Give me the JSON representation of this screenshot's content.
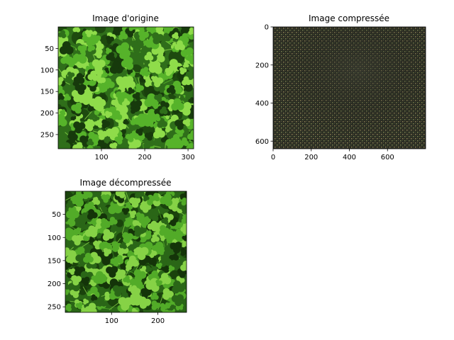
{
  "window": {
    "width": 640,
    "height": 480
  },
  "chart_data": [
    {
      "type": "image",
      "title": "Image d'origine",
      "xlim": [
        0,
        313
      ],
      "ylim": [
        283,
        0
      ],
      "xticks": [
        100,
        200,
        300
      ],
      "yticks": [
        50,
        100,
        150,
        200,
        250
      ],
      "content": "clover-leaves-photo",
      "colors": {
        "base": "#2f6e1a",
        "leaf": "#56b32a",
        "dark": "#173a0c",
        "bright": "#8fdc4a"
      }
    },
    {
      "type": "image",
      "title": "Image compressée",
      "xlim": [
        0,
        800
      ],
      "ylim": [
        640,
        0
      ],
      "xticks": [
        0,
        200,
        400,
        600
      ],
      "yticks": [
        0,
        200,
        400,
        600
      ],
      "content": "compressed-noise-pattern",
      "colors": {
        "base": "#2b2d23",
        "dot_a": "#6f7a4c",
        "dot_b": "#8a7f55",
        "dark": "#191a14"
      }
    },
    {
      "type": "image",
      "title": "Image décompressée",
      "xlim": [
        0,
        262
      ],
      "ylim": [
        262,
        0
      ],
      "xticks": [
        100,
        200
      ],
      "yticks": [
        50,
        100,
        150,
        200,
        250
      ],
      "content": "clover-leaves-reconstructed",
      "colors": {
        "base": "#2a6617",
        "leaf": "#52ab28",
        "dark": "#143409",
        "bright": "#86d246"
      }
    }
  ]
}
